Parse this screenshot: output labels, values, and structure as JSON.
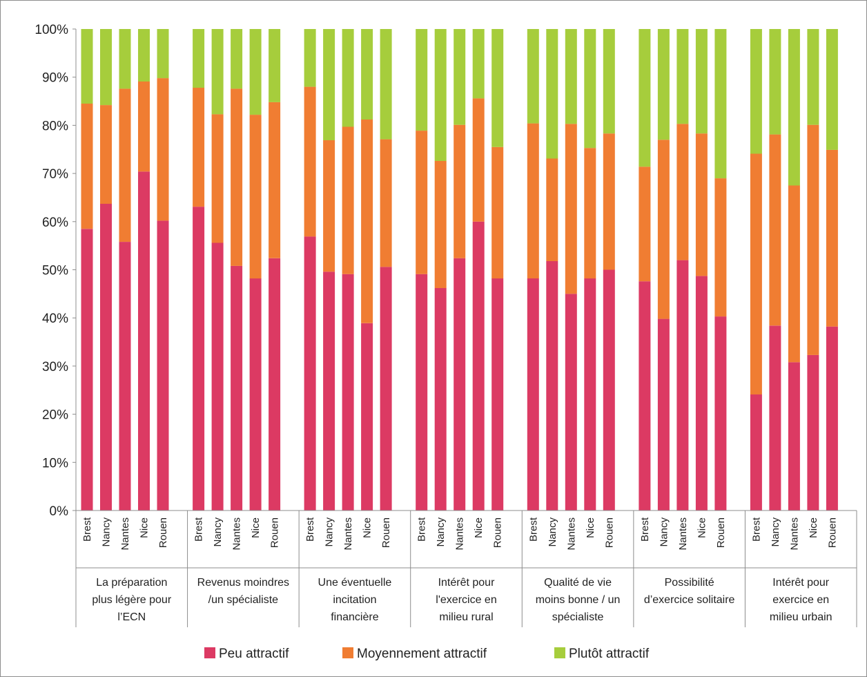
{
  "chart_data": {
    "type": "bar",
    "stacked": true,
    "normalized": true,
    "title": "",
    "xlabel": "",
    "ylabel": "",
    "ylim": [
      0,
      100
    ],
    "yticks": [
      "0%",
      "10%",
      "20%",
      "30%",
      "40%",
      "50%",
      "60%",
      "70%",
      "80%",
      "90%",
      "100%"
    ],
    "grid": false,
    "legend_position": "bottom",
    "cities": [
      "Brest",
      "Nancy",
      "Nantes",
      "Nice",
      "Rouen"
    ],
    "groups": [
      {
        "label_lines": [
          "La préparation",
          "plus légère pour",
          "l’ECN"
        ]
      },
      {
        "label_lines": [
          "Revenus moindres",
          "/un spécialiste"
        ]
      },
      {
        "label_lines": [
          "Une éventuelle",
          "incitation",
          "financière"
        ]
      },
      {
        "label_lines": [
          "Intérêt pour",
          "l'exercice en",
          "milieu rural"
        ]
      },
      {
        "label_lines": [
          "Qualité de vie",
          "moins bonne / un",
          "spécialiste"
        ]
      },
      {
        "label_lines": [
          "Possibilité",
          "d’exercice solitaire"
        ]
      },
      {
        "label_lines": [
          "Intérêt pour",
          "exercice en",
          "milieu urbain"
        ]
      }
    ],
    "series": [
      {
        "name": "Peu attractif",
        "color": "#dc3a63",
        "values": [
          [
            58.5,
            63.7,
            55.8,
            70.4,
            60.2
          ],
          [
            63.1,
            55.6,
            50.8,
            48.2,
            52.4
          ],
          [
            56.9,
            49.6,
            49.1,
            38.9,
            50.6
          ],
          [
            49.1,
            46.2,
            52.4,
            60.0,
            48.2
          ],
          [
            48.2,
            51.8,
            45.0,
            48.2,
            50.0
          ],
          [
            47.6,
            39.8,
            52.0,
            48.7,
            40.3
          ],
          [
            24.1,
            38.4,
            30.8,
            32.3,
            38.2
          ]
        ]
      },
      {
        "name": "Moyennement attractif",
        "color": "#f07d32",
        "values": [
          [
            26.0,
            20.5,
            31.8,
            18.7,
            29.6
          ],
          [
            24.7,
            26.7,
            36.8,
            34.0,
            32.4
          ],
          [
            31.1,
            27.3,
            30.6,
            42.3,
            26.5
          ],
          [
            29.8,
            26.4,
            27.7,
            25.6,
            27.3
          ],
          [
            32.2,
            21.3,
            35.3,
            27.1,
            28.3
          ],
          [
            23.8,
            37.2,
            28.3,
            29.6,
            28.7
          ],
          [
            50.0,
            39.7,
            36.7,
            47.8,
            36.7
          ]
        ]
      },
      {
        "name": "Plutôt attractif",
        "color": "#a6cd3c",
        "values": [
          [
            15.5,
            15.8,
            12.4,
            10.9,
            10.2
          ],
          [
            12.2,
            17.7,
            12.4,
            17.8,
            15.2
          ],
          [
            12.0,
            23.1,
            20.3,
            18.8,
            22.9
          ],
          [
            21.1,
            27.4,
            19.9,
            14.4,
            24.5
          ],
          [
            19.6,
            26.9,
            19.7,
            24.7,
            21.7
          ],
          [
            28.6,
            23.0,
            19.7,
            21.7,
            31.0
          ],
          [
            25.9,
            21.9,
            32.5,
            19.9,
            25.1
          ]
        ]
      }
    ]
  }
}
